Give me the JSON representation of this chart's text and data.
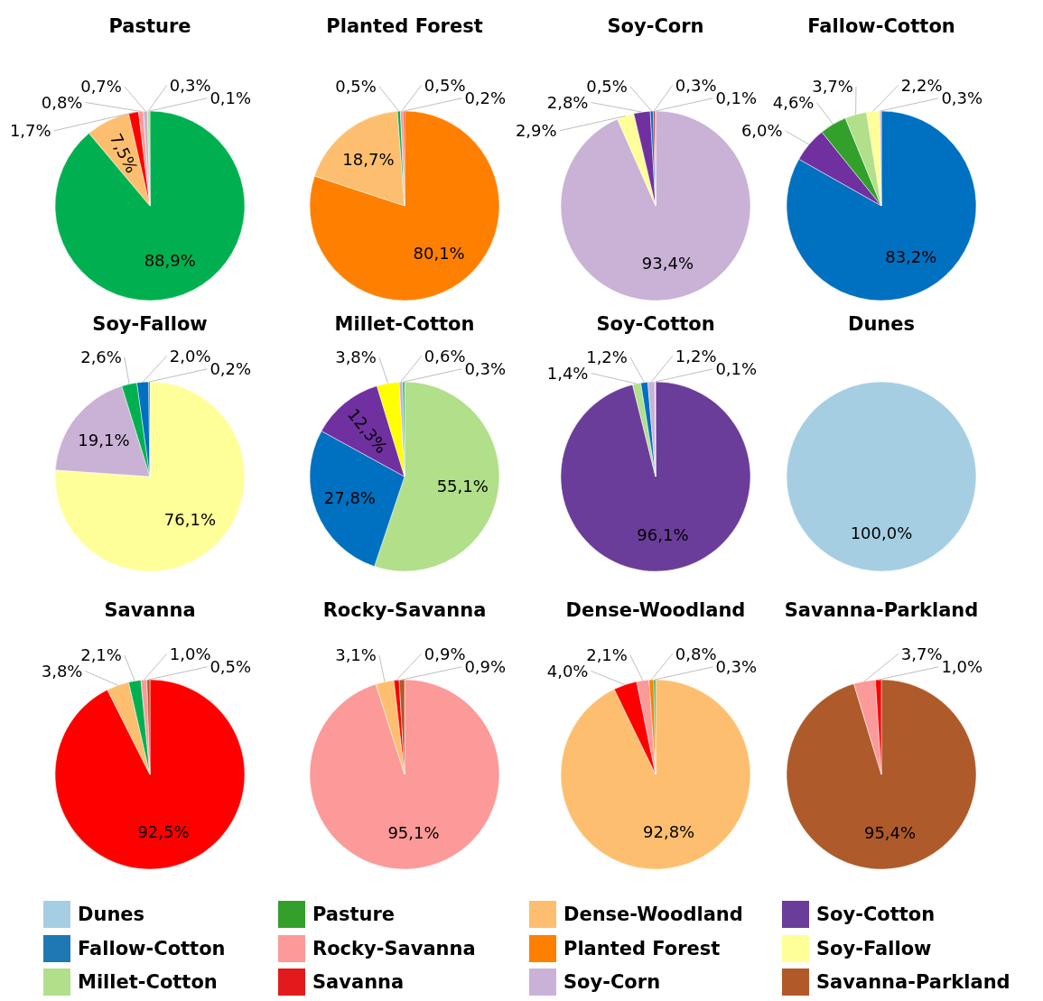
{
  "chart_data": [
    {
      "type": "pie",
      "title": "Pasture",
      "values": [
        88.9,
        7.5,
        1.7,
        0.8,
        0.7,
        0.3,
        0.1
      ],
      "value_labels": [
        "88,9%",
        "7,5%",
        "1,7%",
        "0,8%",
        "0,7%",
        "0,3%",
        "0,1%"
      ],
      "colors": [
        "#00b050",
        "#fdbf6f",
        "#ff0000",
        "#fb9a99",
        "#cab2d6",
        "#b2df8a",
        "#6a3d9a"
      ]
    },
    {
      "type": "pie",
      "title": "Planted Forest",
      "values": [
        80.1,
        18.7,
        0.5,
        0.5,
        0.2
      ],
      "value_labels": [
        "80,1%",
        "18,7%",
        "0,5%",
        "0,5%",
        "0,2%"
      ],
      "colors": [
        "#ff8000",
        "#fdbf6f",
        "#00b050",
        "#fb9a99",
        "#ff0000"
      ]
    },
    {
      "type": "pie",
      "title": "Soy-Corn",
      "values": [
        93.4,
        2.9,
        2.8,
        0.5,
        0.3,
        0.1
      ],
      "value_labels": [
        "93,4%",
        "2,9%",
        "2,8%",
        "0,5%",
        "0,3%",
        "0,1%"
      ],
      "colors": [
        "#c9b2d6",
        "#ffff99",
        "#7030a0",
        "#0070c0",
        "#ff0000",
        "#00b050"
      ]
    },
    {
      "type": "pie",
      "title": "Fallow-Cotton",
      "values": [
        83.2,
        6.0,
        4.6,
        3.7,
        2.2,
        0.3
      ],
      "value_labels": [
        "83,2%",
        "6,0%",
        "4,6%",
        "3,7%",
        "2,2%",
        "0,3%"
      ],
      "colors": [
        "#0070c0",
        "#7030a0",
        "#33a02c",
        "#b2df8a",
        "#ffff99",
        "#cab2d6"
      ]
    },
    {
      "type": "pie",
      "title": "Soy-Fallow",
      "values": [
        76.1,
        19.1,
        2.6,
        2.0,
        0.2
      ],
      "value_labels": [
        "76,1%",
        "19,1%",
        "2,6%",
        "2,0%",
        "0,2%"
      ],
      "colors": [
        "#ffff99",
        "#c9b2d6",
        "#00b050",
        "#0070c0",
        "#6a3d9a"
      ]
    },
    {
      "type": "pie",
      "title": "Millet-Cotton",
      "values": [
        55.1,
        27.8,
        12.3,
        3.8,
        0.6,
        0.3
      ],
      "value_labels": [
        "55,1%",
        "27,8%",
        "12,3%",
        "3,8%",
        "0,6%",
        "0,3%"
      ],
      "colors": [
        "#b2df8a",
        "#0070c0",
        "#7030a0",
        "#ffff00",
        "#cab2d6",
        "#00b050"
      ]
    },
    {
      "type": "pie",
      "title": "Soy-Cotton",
      "values": [
        96.1,
        1.4,
        1.2,
        1.2,
        0.1
      ],
      "value_labels": [
        "96,1%",
        "1,4%",
        "1,2%",
        "1,2%",
        "0,1%"
      ],
      "colors": [
        "#6a3d9a",
        "#b2df8a",
        "#0070c0",
        "#cab2d6",
        "#ffff99"
      ]
    },
    {
      "type": "pie",
      "title": "Dunes",
      "values": [
        100.0
      ],
      "value_labels": [
        "100,0%"
      ],
      "colors": [
        "#a6cee3"
      ]
    },
    {
      "type": "pie",
      "title": "Savanna",
      "values": [
        92.5,
        3.8,
        2.1,
        1.0,
        0.5
      ],
      "value_labels": [
        "92,5%",
        "3,8%",
        "2,1%",
        "1,0%",
        "0,5%"
      ],
      "colors": [
        "#ff0000",
        "#fdbf6f",
        "#00b050",
        "#fb9a99",
        "#b15928"
      ]
    },
    {
      "type": "pie",
      "title": "Rocky-Savanna",
      "values": [
        95.1,
        3.1,
        0.9,
        0.9
      ],
      "value_labels": [
        "95,1%",
        "3,1%",
        "0,9%",
        "0,9%"
      ],
      "colors": [
        "#fb9a99",
        "#fdbf6f",
        "#ff0000",
        "#b15928"
      ]
    },
    {
      "type": "pie",
      "title": "Dense-Woodland",
      "values": [
        92.8,
        4.0,
        2.1,
        0.8,
        0.3
      ],
      "value_labels": [
        "92,8%",
        "4,0%",
        "2,1%",
        "0,8%",
        "0,3%"
      ],
      "colors": [
        "#fdbf6f",
        "#ff0000",
        "#fb9a99",
        "#ff8000",
        "#00b050"
      ]
    },
    {
      "type": "pie",
      "title": "Savanna-Parkland",
      "values": [
        95.4,
        3.7,
        1.0
      ],
      "value_labels": [
        "95,4%",
        "3,7%",
        "1,0%"
      ],
      "colors": [
        "#ae5a2a",
        "#fb9a99",
        "#ff0000"
      ]
    },
    {
      "type": "other",
      "categories": [
        "Dunes",
        "Fallow-Cotton",
        "Millet-Cotton",
        "Pasture",
        "Rocky-Savanna",
        "Savanna",
        "Dense-Woodland",
        "Planted Forest",
        "Soy-Corn",
        "Soy-Cotton",
        "Soy-Fallow",
        "Savanna-Parkland"
      ],
      "colors": [
        "#a6cee3",
        "#1f78b4",
        "#b2df8a",
        "#33a02c",
        "#fb9a99",
        "#e31a1c",
        "#fdbf6f",
        "#ff7f00",
        "#cab2d6",
        "#6a3d9a",
        "#ffff99",
        "#b15928"
      ]
    }
  ]
}
